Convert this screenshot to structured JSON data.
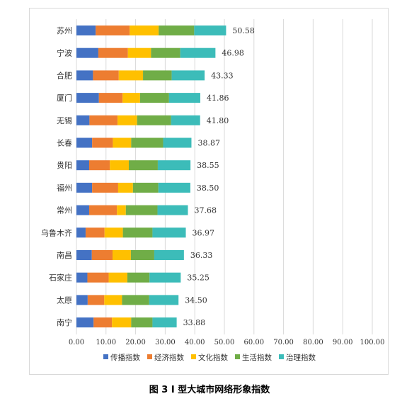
{
  "chart_data": {
    "type": "bar",
    "orientation": "horizontal",
    "stacked": true,
    "caption": "图 3 I 型大城市网络形象指数",
    "categories": [
      "苏州",
      "宁波",
      "合肥",
      "厦门",
      "无锡",
      "长春",
      "贵阳",
      "福州",
      "常州",
      "乌鲁木齐",
      "南昌",
      "石家庄",
      "太原",
      "南宁"
    ],
    "totals": [
      "50.58",
      "46.98",
      "43.33",
      "41.86",
      "41.80",
      "38.87",
      "38.55",
      "38.50",
      "37.68",
      "36.97",
      "36.33",
      "35.25",
      "34.50",
      "33.88"
    ],
    "xlim": [
      0,
      100
    ],
    "xticks": [
      "0.00",
      "10.00",
      "20.00",
      "30.00",
      "40.00",
      "50.00",
      "60.00",
      "70.00",
      "80.00",
      "90.00",
      "100.00"
    ],
    "grid": true,
    "legend_position": "bottom",
    "series": [
      {
        "name": "传播指数",
        "color": "#4472C4",
        "values": [
          6.5,
          7.4,
          5.6,
          7.6,
          4.4,
          5.3,
          4.3,
          5.3,
          4.3,
          3.1,
          5.2,
          3.7,
          3.8,
          5.8
        ]
      },
      {
        "name": "经济指数",
        "color": "#ED7D31",
        "values": [
          11.5,
          10.0,
          8.7,
          8.0,
          9.5,
          7.0,
          7.0,
          8.8,
          9.4,
          6.4,
          7.0,
          7.2,
          5.6,
          6.2
        ]
      },
      {
        "name": "文化指数",
        "color": "#FFC000",
        "values": [
          9.8,
          7.8,
          8.2,
          5.9,
          6.6,
          6.2,
          6.4,
          5.0,
          3.0,
          6.2,
          6.2,
          6.3,
          6.0,
          6.5
        ]
      },
      {
        "name": "生活指数",
        "color": "#70AD47",
        "values": [
          12.0,
          9.9,
          9.7,
          9.8,
          11.5,
          10.8,
          9.8,
          8.6,
          10.7,
          10.0,
          7.9,
          7.5,
          9.2,
          7.2
        ]
      },
      {
        "name": "治理指数",
        "color": "#3CBCB9",
        "values": [
          10.78,
          11.88,
          11.13,
          10.56,
          9.8,
          9.57,
          11.05,
          10.8,
          10.28,
          11.27,
          10.03,
          10.55,
          9.9,
          8.18
        ]
      }
    ]
  }
}
